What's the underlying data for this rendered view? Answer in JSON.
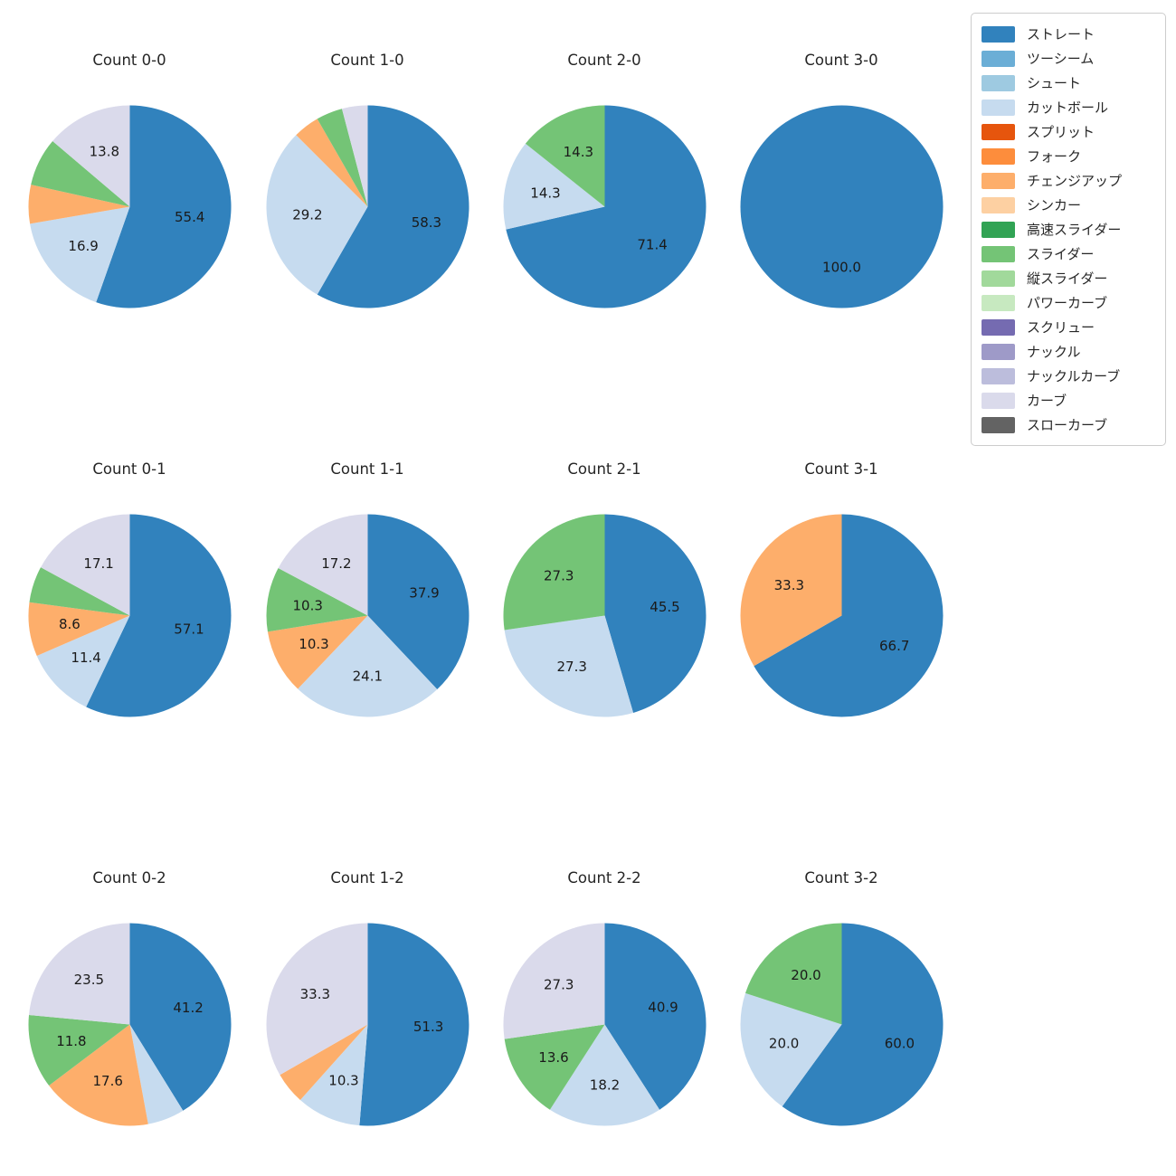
{
  "palette": {
    "ストレート": "#3182bd",
    "ツーシーム": "#6baed6",
    "シュート": "#9ecae1",
    "カットボール": "#c6dbef",
    "スプリット": "#e6550d",
    "フォーク": "#fd8d3c",
    "チェンジアップ": "#fdae6b",
    "シンカー": "#fdd0a2",
    "高速スライダー": "#31a354",
    "スライダー": "#74c476",
    "縦スライダー": "#a1d99b",
    "パワーカーブ": "#c7e9c0",
    "スクリュー": "#756bb1",
    "ナックル": "#9e9ac8",
    "ナックルカーブ": "#bcbddc",
    "カーブ": "#dadaeb",
    "スローカーブ": "#636363"
  },
  "legend": {
    "position": "upper right",
    "items": [
      "ストレート",
      "ツーシーム",
      "シュート",
      "カットボール",
      "スプリット",
      "フォーク",
      "チェンジアップ",
      "シンカー",
      "高速スライダー",
      "スライダー",
      "縦スライダー",
      "パワーカーブ",
      "スクリュー",
      "ナックル",
      "ナックルカーブ",
      "カーブ",
      "スローカーブ"
    ]
  },
  "chart_data": {
    "type": "pie",
    "unit": "percent",
    "start_angle_deg": 90,
    "direction": "clockwise",
    "pct_distance": 0.6,
    "grid": {
      "rows": 3,
      "cols": 4
    },
    "charts": [
      {
        "title": "Count 0-0",
        "slices": [
          {
            "name": "ストレート",
            "value": 55.4,
            "label": "55.4"
          },
          {
            "name": "カットボール",
            "value": 16.9,
            "label": "16.9"
          },
          {
            "name": "チェンジアップ",
            "value": 6.2,
            "label": ""
          },
          {
            "name": "スライダー",
            "value": 7.7,
            "label": ""
          },
          {
            "name": "カーブ",
            "value": 13.8,
            "label": "13.8"
          }
        ]
      },
      {
        "title": "Count 1-0",
        "slices": [
          {
            "name": "ストレート",
            "value": 58.3,
            "label": "58.3"
          },
          {
            "name": "カットボール",
            "value": 29.2,
            "label": "29.2"
          },
          {
            "name": "チェンジアップ",
            "value": 4.2,
            "label": ""
          },
          {
            "name": "スライダー",
            "value": 4.2,
            "label": ""
          },
          {
            "name": "カーブ",
            "value": 4.1,
            "label": ""
          }
        ]
      },
      {
        "title": "Count 2-0",
        "slices": [
          {
            "name": "ストレート",
            "value": 71.4,
            "label": "71.4"
          },
          {
            "name": "カットボール",
            "value": 14.3,
            "label": "14.3"
          },
          {
            "name": "スライダー",
            "value": 14.3,
            "label": "14.3"
          }
        ]
      },
      {
        "title": "Count 3-0",
        "slices": [
          {
            "name": "ストレート",
            "value": 100.0,
            "label": "100.0"
          }
        ]
      },
      {
        "title": "Count 0-1",
        "slices": [
          {
            "name": "ストレート",
            "value": 57.1,
            "label": "57.1"
          },
          {
            "name": "カットボール",
            "value": 11.4,
            "label": "11.4"
          },
          {
            "name": "チェンジアップ",
            "value": 8.6,
            "label": "8.6"
          },
          {
            "name": "スライダー",
            "value": 5.8,
            "label": ""
          },
          {
            "name": "カーブ",
            "value": 17.1,
            "label": "17.1"
          }
        ]
      },
      {
        "title": "Count 1-1",
        "slices": [
          {
            "name": "ストレート",
            "value": 37.9,
            "label": "37.9"
          },
          {
            "name": "カットボール",
            "value": 24.1,
            "label": "24.1"
          },
          {
            "name": "チェンジアップ",
            "value": 10.3,
            "label": "10.3"
          },
          {
            "name": "スライダー",
            "value": 10.3,
            "label": "10.3"
          },
          {
            "name": "カーブ",
            "value": 17.2,
            "label": "17.2"
          }
        ]
      },
      {
        "title": "Count 2-1",
        "slices": [
          {
            "name": "ストレート",
            "value": 45.5,
            "label": "45.5"
          },
          {
            "name": "カットボール",
            "value": 27.3,
            "label": "27.3"
          },
          {
            "name": "スライダー",
            "value": 27.3,
            "label": "27.3"
          }
        ]
      },
      {
        "title": "Count 3-1",
        "slices": [
          {
            "name": "ストレート",
            "value": 66.7,
            "label": "66.7"
          },
          {
            "name": "チェンジアップ",
            "value": 33.3,
            "label": "33.3"
          }
        ]
      },
      {
        "title": "Count 0-2",
        "slices": [
          {
            "name": "ストレート",
            "value": 41.2,
            "label": "41.2"
          },
          {
            "name": "カットボール",
            "value": 5.9,
            "label": ""
          },
          {
            "name": "チェンジアップ",
            "value": 17.6,
            "label": "17.6"
          },
          {
            "name": "スライダー",
            "value": 11.8,
            "label": "11.8"
          },
          {
            "name": "カーブ",
            "value": 23.5,
            "label": "23.5"
          }
        ]
      },
      {
        "title": "Count 1-2",
        "slices": [
          {
            "name": "ストレート",
            "value": 51.3,
            "label": "51.3"
          },
          {
            "name": "カットボール",
            "value": 10.3,
            "label": "10.3"
          },
          {
            "name": "チェンジアップ",
            "value": 5.1,
            "label": ""
          },
          {
            "name": "カーブ",
            "value": 33.3,
            "label": "33.3"
          }
        ]
      },
      {
        "title": "Count 2-2",
        "slices": [
          {
            "name": "ストレート",
            "value": 40.9,
            "label": "40.9"
          },
          {
            "name": "カットボール",
            "value": 18.2,
            "label": "18.2"
          },
          {
            "name": "スライダー",
            "value": 13.6,
            "label": "13.6"
          },
          {
            "name": "カーブ",
            "value": 27.3,
            "label": "27.3"
          }
        ]
      },
      {
        "title": "Count 3-2",
        "slices": [
          {
            "name": "ストレート",
            "value": 60.0,
            "label": "60.0"
          },
          {
            "name": "カットボール",
            "value": 20.0,
            "label": "20.0"
          },
          {
            "name": "スライダー",
            "value": 20.0,
            "label": "20.0"
          }
        ]
      }
    ]
  }
}
